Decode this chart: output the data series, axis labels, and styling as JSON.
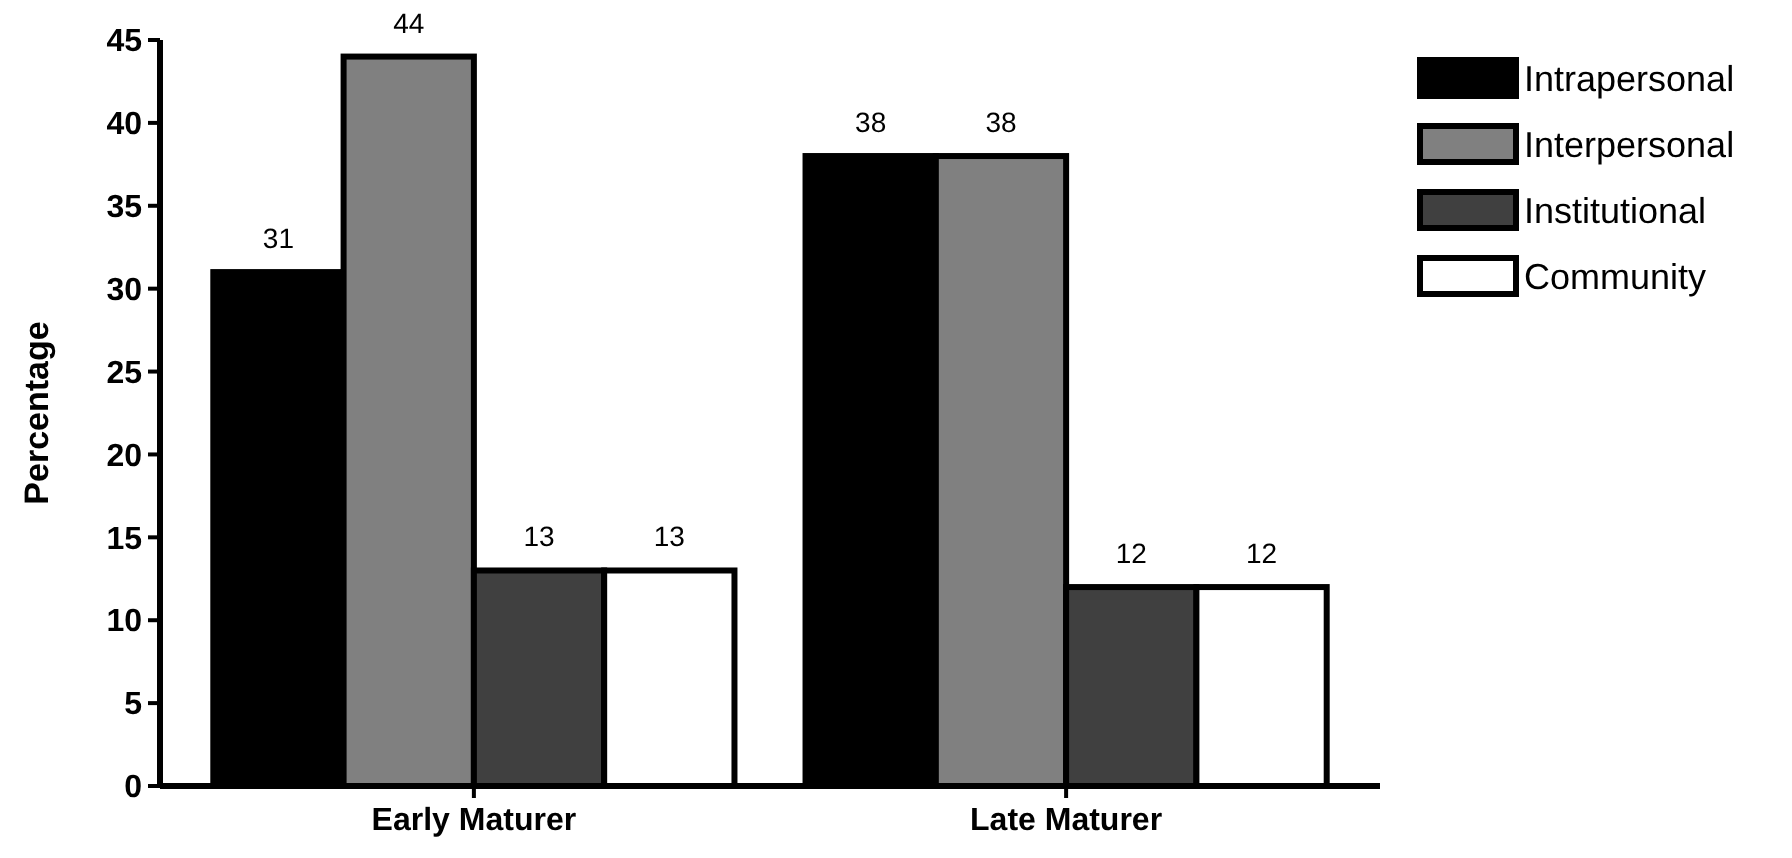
{
  "chart_data": {
    "type": "bar",
    "ylabel": "Percentage",
    "categories": [
      "Early Maturer",
      "Late Maturer"
    ],
    "series": [
      {
        "name": "Intrapersonal",
        "color": "#000000",
        "values": [
          31,
          38
        ]
      },
      {
        "name": "Interpersonal",
        "color": "#808080",
        "values": [
          44,
          38
        ]
      },
      {
        "name": "Institutional",
        "color": "#404040",
        "values": [
          13,
          12
        ]
      },
      {
        "name": "Community",
        "color": "#ffffff",
        "values": [
          13,
          12
        ]
      }
    ],
    "ylim": [
      0,
      45
    ],
    "yticks": [
      0,
      5,
      10,
      15,
      20,
      25,
      30,
      35,
      40,
      45
    ],
    "data_labels": true,
    "grid": false,
    "legend": "top right"
  }
}
